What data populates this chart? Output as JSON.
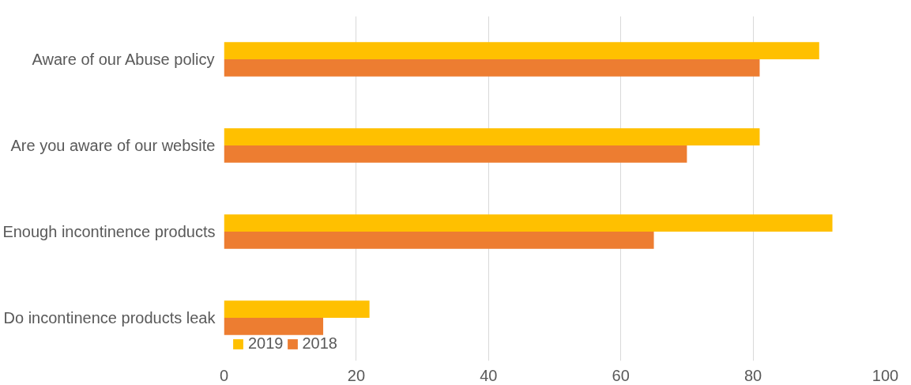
{
  "chart_data": {
    "type": "bar",
    "orientation": "horizontal",
    "categories": [
      "Aware of our Abuse policy",
      "Are you aware of our website",
      "Enough incontinence products",
      "Do incontinence products leak"
    ],
    "series": [
      {
        "name": "2019",
        "color": "#ffc000",
        "values": [
          90,
          81,
          92,
          22
        ]
      },
      {
        "name": "2018",
        "color": "#ed7d31",
        "values": [
          81,
          70,
          65,
          15
        ]
      }
    ],
    "xlim": [
      0,
      100
    ],
    "xticks": [
      0,
      20,
      40,
      60,
      80,
      100
    ],
    "grid": "x",
    "legend": "bottom left"
  }
}
